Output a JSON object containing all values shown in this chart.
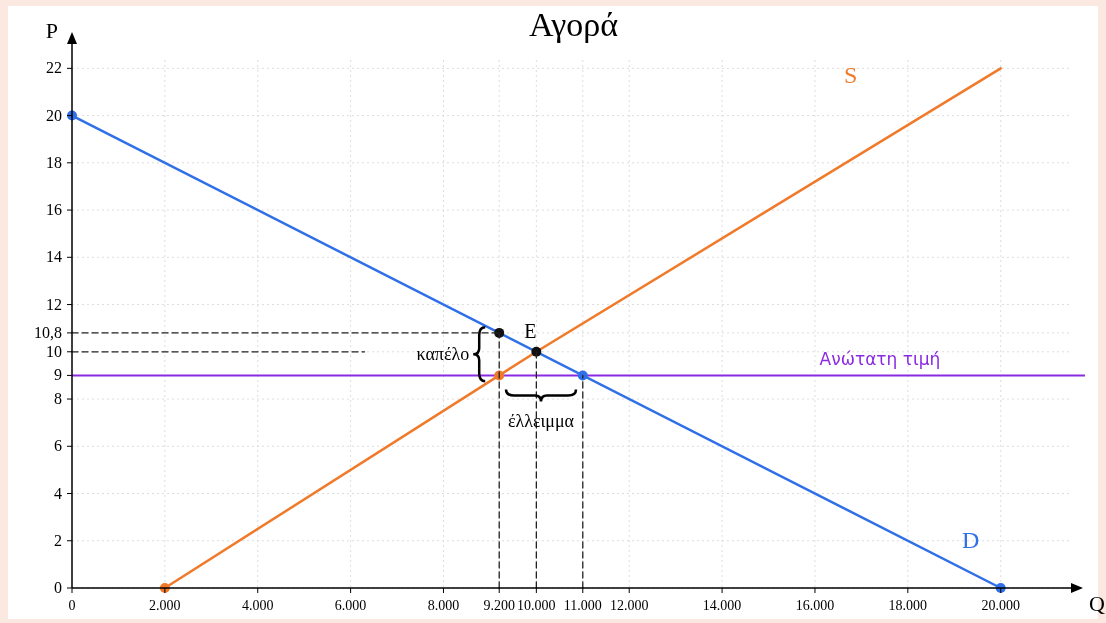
{
  "chart_data": {
    "type": "line",
    "title": "Αγορά",
    "xlabel": "Q",
    "ylabel": "P",
    "xlim": [
      0,
      21600
    ],
    "ylim": [
      0,
      23.2
    ],
    "xticks": [
      0,
      {
        "value": 2000,
        "label": "2.000"
      },
      {
        "value": 4000,
        "label": "4.000"
      },
      {
        "value": 6000,
        "label": "6.000"
      },
      {
        "value": 8000,
        "label": "8.000"
      },
      {
        "value": 9200,
        "label": "9.200"
      },
      {
        "value": 10000,
        "label": "10.000"
      },
      {
        "value": 11000,
        "label": "11.000"
      },
      {
        "value": 12000,
        "label": "12.000"
      },
      {
        "value": 14000,
        "label": "14.000"
      },
      {
        "value": 16000,
        "label": "16.000"
      },
      {
        "value": 18000,
        "label": "18.000"
      },
      {
        "value": 20000,
        "label": "20.000"
      }
    ],
    "yticks": [
      0,
      2,
      4,
      6,
      8,
      9,
      10,
      {
        "value": 10.8,
        "label": "10,8"
      },
      12,
      14,
      16,
      18,
      20,
      22
    ],
    "grid": true,
    "series": [
      {
        "name": "D",
        "color": "#2f6fe8",
        "x": [
          0,
          20000
        ],
        "values": [
          20,
          0
        ],
        "marker": "none"
      },
      {
        "name": "S",
        "color": "#f07a2a",
        "x": [
          2000,
          9200,
          10000,
          20000
        ],
        "values": [
          0,
          9,
          10,
          22
        ],
        "marker": "none"
      },
      {
        "type": "scatter",
        "x": [
          0,
          11000,
          20000,
          2000,
          9200,
          9200,
          10000
        ],
        "values": [
          20,
          9,
          0,
          0,
          9,
          10.8,
          10
        ],
        "colors": [
          "#2f6fe8",
          "#2f6fe8",
          "#2f6fe8",
          "#f07a2a",
          "#f07a2a",
          "#111111",
          "#111111"
        ],
        "marker": "circle"
      },
      {
        "color": "#222222",
        "x": [
          0,
          9200
        ],
        "values": [
          10.8,
          10.8
        ],
        "line_style": "dashed",
        "marker": "none"
      },
      {
        "color": "#222222",
        "x": [
          0,
          6300
        ],
        "values": [
          10,
          10
        ],
        "line_style": "dashed",
        "marker": "none"
      },
      {
        "color": "#222222",
        "x": [
          9200,
          9200
        ],
        "values": [
          0,
          10.8
        ],
        "line_style": "dashed",
        "marker": "none"
      },
      {
        "color": "#222222",
        "x": [
          10000,
          10000
        ],
        "values": [
          0,
          10
        ],
        "line_style": "dashed",
        "marker": "none"
      },
      {
        "color": "#222222",
        "x": [
          11000,
          11000
        ],
        "values": [
          0,
          9
        ],
        "line_style": "dashed",
        "marker": "none"
      }
    ],
    "ref_lines": [
      {
        "axis": "y",
        "value": 9,
        "label": "Ανώτατη τιμή",
        "color": "#8a2be2"
      }
    ],
    "annotations": [
      {
        "text": "E",
        "x": 10000,
        "y": 10
      },
      {
        "text": "καπέλο",
        "x": 9200,
        "y": 9.9
      },
      {
        "text": "έλλειμμα",
        "x": 10100,
        "y": 9
      }
    ]
  }
}
